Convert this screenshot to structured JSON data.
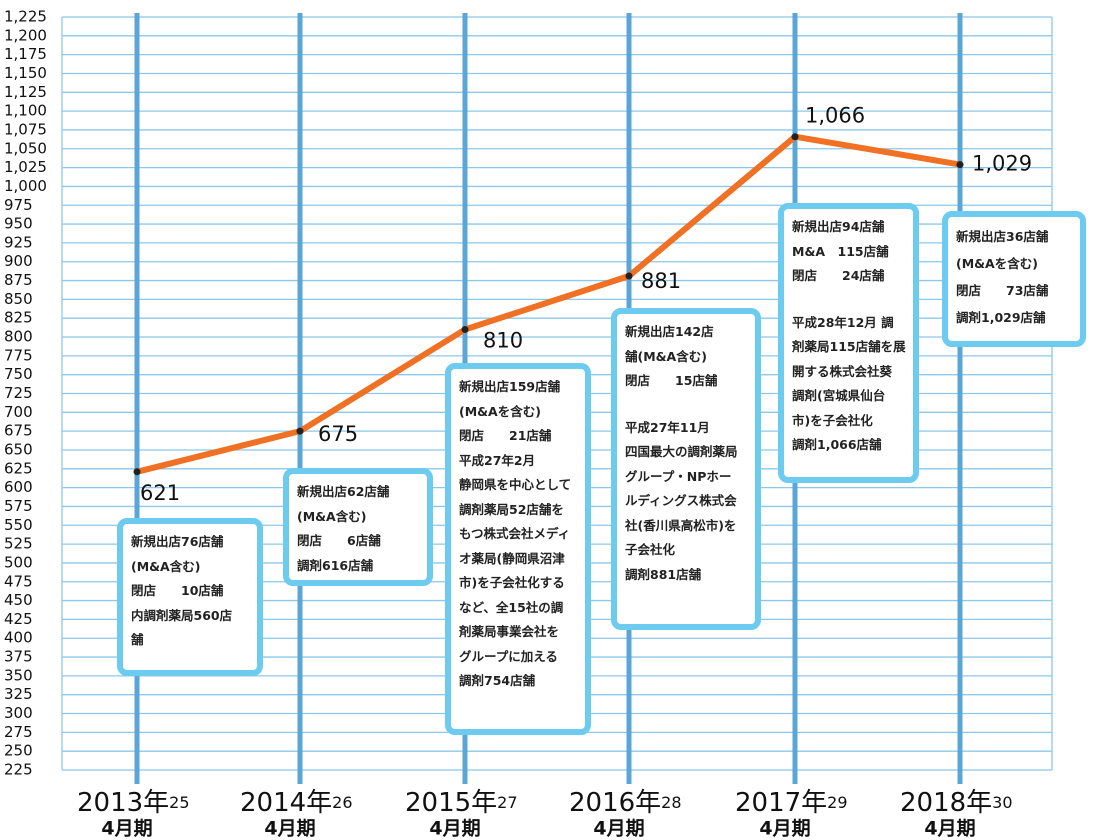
{
  "chart_data": {
    "type": "line",
    "categories": [
      "2013年",
      "2014年",
      "2015年",
      "2016年",
      "2017年",
      "2018年"
    ],
    "era_years": [
      "25",
      "26",
      "27",
      "28",
      "29",
      "30"
    ],
    "periods": [
      "4月期",
      "4月期",
      "4月期",
      "4月期",
      "4月期",
      "4月期"
    ],
    "values": [
      621,
      675,
      810,
      881,
      1066,
      1029
    ],
    "value_labels": [
      "621",
      "675",
      "810",
      "881",
      "1,066",
      "1,029"
    ],
    "color": "#f07024",
    "ylim": [
      225,
      1225
    ],
    "yticks": [
      225,
      250,
      275,
      300,
      325,
      350,
      375,
      400,
      425,
      450,
      475,
      500,
      525,
      550,
      575,
      600,
      625,
      650,
      675,
      700,
      725,
      750,
      775,
      800,
      825,
      850,
      875,
      900,
      925,
      950,
      975,
      {
        "value": 1000,
        "label": "1,000"
      },
      {
        "value": 1025,
        "label": "1,025"
      },
      {
        "value": 1050,
        "label": "1,050"
      },
      {
        "value": 1075,
        "label": "1,075"
      },
      {
        "value": 1100,
        "label": "1,100"
      },
      {
        "value": 1125,
        "label": "1,125"
      },
      {
        "value": 1150,
        "label": "1,150"
      },
      {
        "value": 1175,
        "label": "1,175"
      },
      {
        "value": 1200,
        "label": "1,200"
      },
      {
        "value": 1225,
        "label": "1,225"
      }
    ],
    "grid": true,
    "annotations": [
      {
        "groups": [
          [
            "新規出店76店舗",
            "(M&A含む)",
            "閉店　　10店舗",
            "内調剤薬局560店",
            "舗"
          ]
        ]
      },
      {
        "groups": [
          [
            "新規出店62店舗",
            "(M&A含む)",
            "閉店　　6店舗",
            "調剤616店舗"
          ]
        ]
      },
      {
        "groups": [
          [
            "新規出店159店舗",
            "(M&Aを含む)",
            "閉店　　21店舗",
            "平成27年2月",
            "静岡県を中心として",
            "調剤薬局52店舗を",
            "もつ株式会社メディ",
            "オ薬局(静岡県沼津",
            "市)を子会社化する",
            "など、全15社の調",
            "剤薬局事業会社を",
            "グループに加える",
            "調剤754店舗"
          ]
        ]
      },
      {
        "groups": [
          [
            "新規出店142店",
            "舗(M&A含む)",
            "閉店　　15店舗"
          ],
          [
            "平成27年11月",
            "四国最大の調剤薬局",
            "グループ・NPホー",
            "ルディングス株式会",
            "社(香川県高松市)を",
            "子会社化",
            "調剤881店舗"
          ]
        ]
      },
      {
        "groups": [
          [
            "新規出店94店舗",
            "M&A　115店舗",
            "閉店　　24店舗"
          ],
          [
            "平成28年12月 調",
            "剤薬局115店舗を展",
            "開する株式会社葵",
            "調剤(宮城県仙台",
            "市)を子会社化",
            "調剤1,066店舗"
          ]
        ]
      },
      {
        "groups": [
          [
            "新規出店36店舗",
            "(M&Aを含む)",
            "閉店　　73店舗",
            "調剤1,029店舗"
          ]
        ]
      }
    ]
  }
}
